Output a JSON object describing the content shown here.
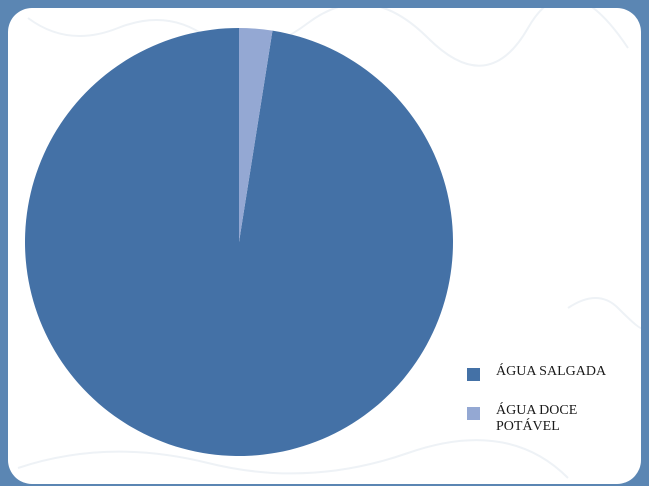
{
  "chart_data": {
    "type": "pie",
    "slices": [
      {
        "label": "ÁGUA SALGADA",
        "value": 97.5,
        "color": "#4471a6"
      },
      {
        "label": "ÁGUA DOCE POTÁVEL",
        "value": 2.5,
        "color": "#94a8d3"
      }
    ],
    "legend_position": "bottom-right",
    "legend": [
      {
        "label": "ÁGUA SALGADA",
        "color": "#4471a6"
      },
      {
        "label": "ÁGUA DOCE POTÁVEL",
        "color": "#94a8d3"
      }
    ]
  },
  "colors": {
    "frame": "#5b86b3",
    "panel": "#ffffff"
  }
}
